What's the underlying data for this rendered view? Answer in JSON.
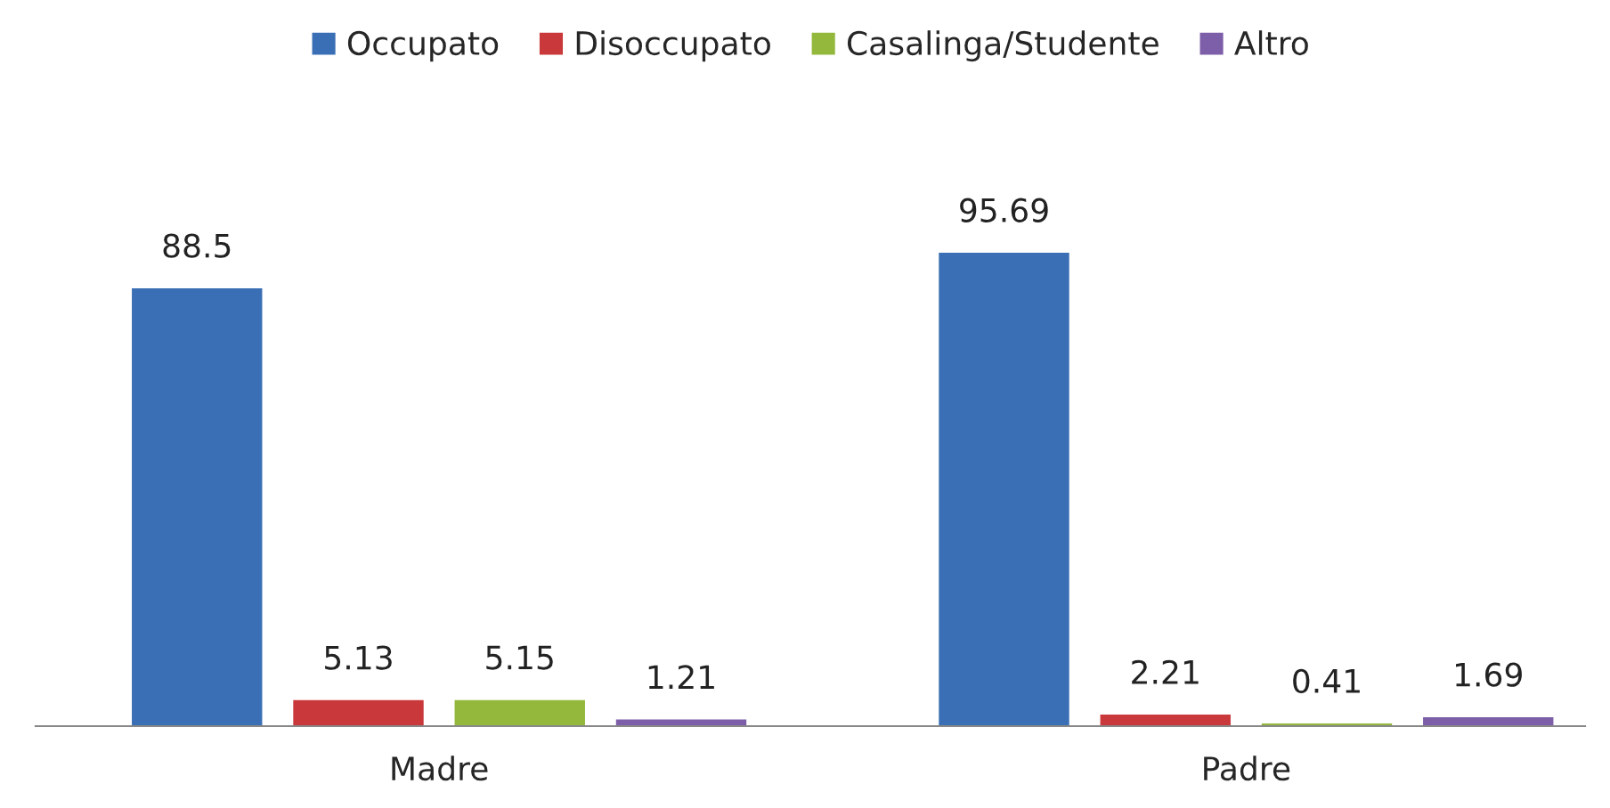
{
  "chart_data": {
    "type": "bar",
    "categories": [
      "Madre",
      "Padre"
    ],
    "series": [
      {
        "name": "Occupato",
        "color": "#3a6fb5",
        "values": [
          88.5,
          95.69
        ]
      },
      {
        "name": "Disoccupato",
        "color": "#c9383a",
        "values": [
          5.13,
          2.21
        ]
      },
      {
        "name": "Casalinga/Studente",
        "color": "#93b83c",
        "values": [
          5.15,
          0.41
        ]
      },
      {
        "name": "Altro",
        "color": "#7d5ea8",
        "values": [
          1.21,
          1.69
        ]
      }
    ],
    "data_labels": true,
    "legend": "top",
    "grid": false
  }
}
